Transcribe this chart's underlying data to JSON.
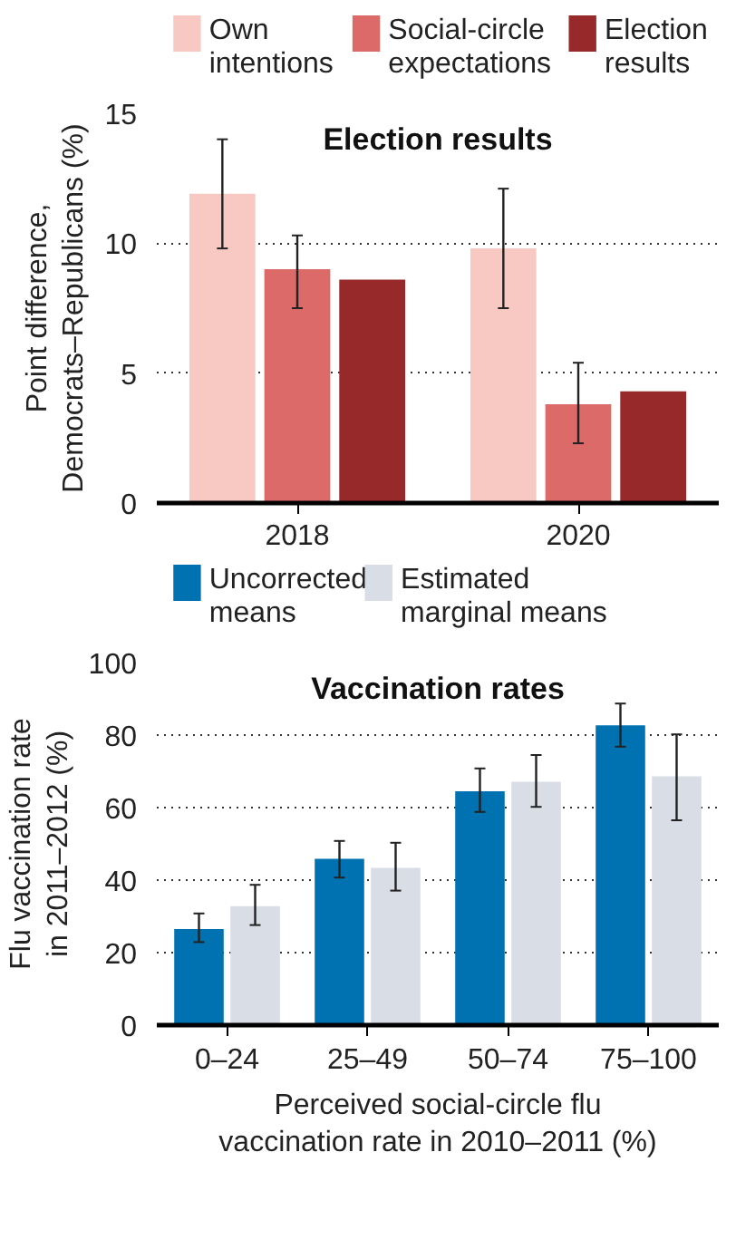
{
  "chart_data": [
    {
      "type": "bar",
      "title": "Election results",
      "ylabel": "Point difference, Democrats–Republicans (%)",
      "categories": [
        "2018",
        "2020"
      ],
      "series": [
        {
          "name": "Own intentions",
          "color": "#f8c8c3",
          "values": [
            11.9,
            9.8
          ],
          "errors": [
            [
              9.8,
              14.0
            ],
            [
              7.5,
              12.1
            ]
          ]
        },
        {
          "name": "Social-circle expectations",
          "color": "#dc6a68",
          "values": [
            9.0,
            3.8
          ],
          "errors": [
            [
              7.5,
              10.3
            ],
            [
              2.3,
              5.4
            ]
          ]
        },
        {
          "name": "Election results",
          "color": "#97292b",
          "values": [
            8.6,
            4.3
          ]
        }
      ],
      "ylim": [
        0,
        15
      ],
      "yticks": [
        0,
        5,
        10,
        15
      ],
      "grid": "y",
      "legend": "top"
    },
    {
      "type": "bar",
      "title": "Vaccination rates",
      "xlabel": "Perceived social-circle flu vaccination rate in 2010–2011 (%)",
      "ylabel": "Flu vaccination rate in 2011–2012 (%)",
      "categories": [
        "0–24",
        "25–49",
        "50–74",
        "75–100"
      ],
      "series": [
        {
          "name": "Uncorrected means",
          "color": "#0072b2",
          "values": [
            26.5,
            45.9,
            64.5,
            82.7
          ],
          "errors": [
            [
              22.9,
              30.8
            ],
            [
              40.7,
              50.8
            ],
            [
              58.8,
              70.8
            ],
            [
              76.8,
              88.7
            ]
          ]
        },
        {
          "name": "Estimated marginal means",
          "color": "#d9dde6",
          "values": [
            32.8,
            43.4,
            67.1,
            68.6
          ],
          "errors": [
            [
              27.6,
              38.7
            ],
            [
              37.1,
              50.3
            ],
            [
              60.2,
              74.5
            ],
            [
              56.5,
              80.2
            ]
          ]
        }
      ],
      "ylim": [
        0,
        100
      ],
      "yticks": [
        0,
        20,
        40,
        60,
        80,
        100
      ],
      "grid": "y",
      "legend": "top"
    }
  ]
}
